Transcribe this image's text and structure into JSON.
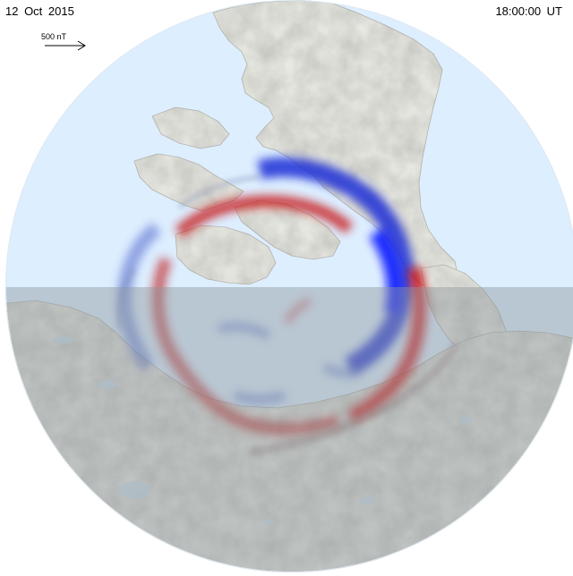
{
  "header": {
    "date": "12  Oct  2015",
    "time": "18:00:00  UT"
  },
  "scale": {
    "label": "500 nT"
  },
  "colors": {
    "sky": "#ddeeff",
    "land": "#efefe9",
    "night_shade": "#9aa0a6",
    "positive": "#cc0000",
    "negative": "#0022cc"
  }
}
